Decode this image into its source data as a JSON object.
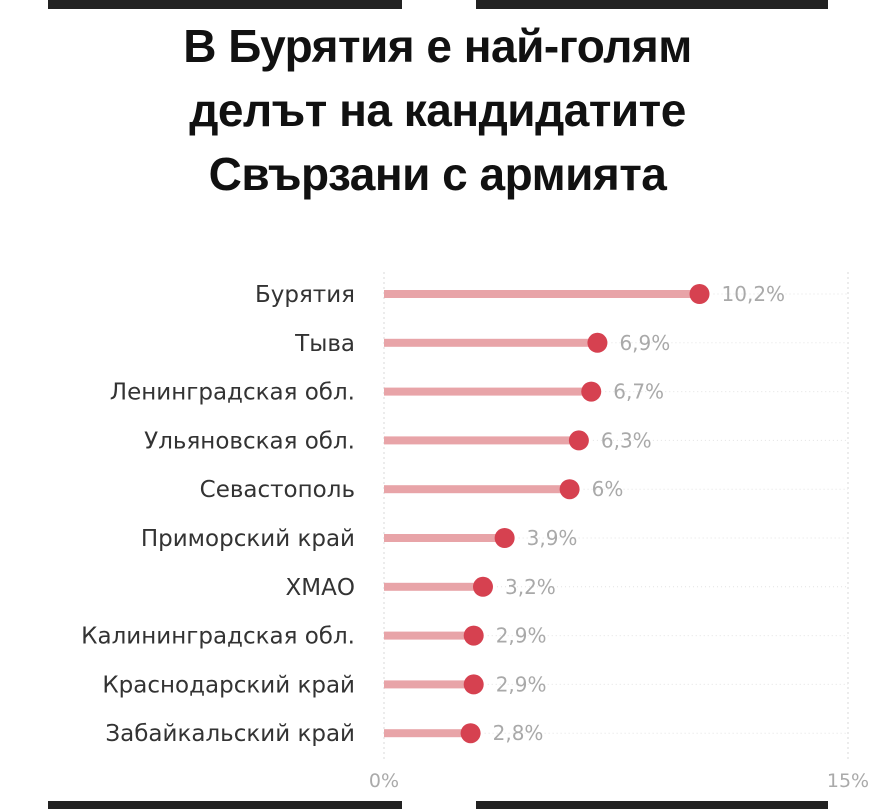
{
  "title_lines": [
    "В Бурятия е най-голям",
    "делът на кандидатите",
    "Свързани с армията"
  ],
  "colors": {
    "bar": "#e8a4a8",
    "dot": "#d64150",
    "text": "#333333",
    "value_text": "#a9a9a9",
    "grid": "#d9d9d9"
  },
  "chart_data": {
    "type": "bar",
    "orientation": "horizontal",
    "categories": [
      "Бурятия",
      "Тыва",
      "Ленинградская обл.",
      "Ульяновская обл.",
      "Севастополь",
      "Приморский край",
      "ХМАО",
      "Калининградская обл.",
      "Краснодарский край",
      "Забайкальский край"
    ],
    "values": [
      10.2,
      6.9,
      6.7,
      6.3,
      6,
      3.9,
      3.2,
      2.9,
      2.9,
      2.8
    ],
    "value_labels": [
      "10,2%",
      "6,9%",
      "6,7%",
      "6,3%",
      "6%",
      "3,9%",
      "3,2%",
      "2,9%",
      "2,9%",
      "2,8%"
    ],
    "xlim": [
      0,
      15
    ],
    "x_ticks": [
      {
        "value": 0,
        "label": "0%"
      },
      {
        "value": 15,
        "label": "15%"
      }
    ],
    "grid": true
  }
}
